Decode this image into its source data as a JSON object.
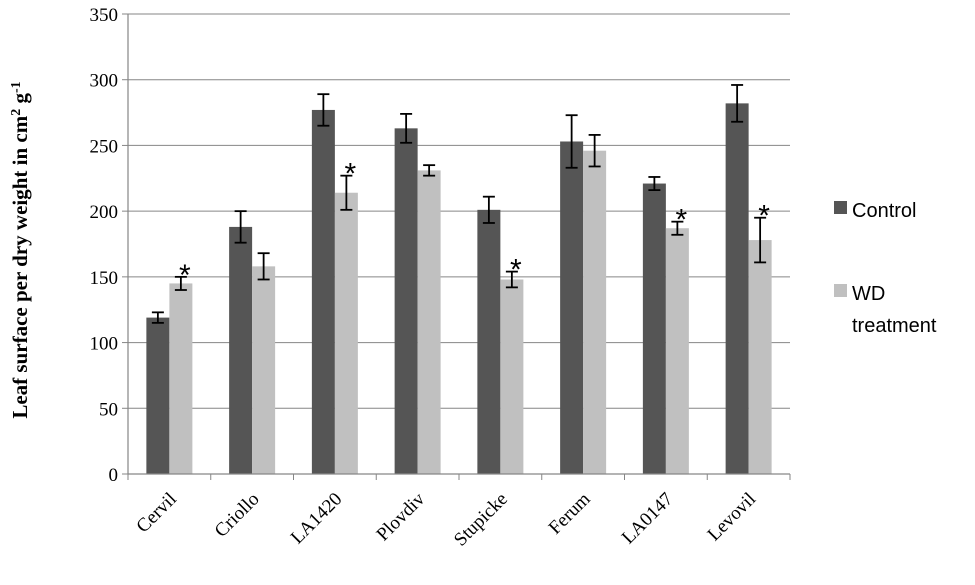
{
  "chart_data": {
    "type": "bar",
    "title": "",
    "xlabel": "",
    "ylabel_main": "Leaf surface per dry weight in cm",
    "ylabel_sup1": "2",
    "ylabel_mid": " g",
    "ylabel_sup2": "-1",
    "ylim": [
      0,
      350
    ],
    "yticks": [
      0,
      50,
      100,
      150,
      200,
      250,
      300,
      350
    ],
    "grid": true,
    "legend_position": "right",
    "categories": [
      "Cervil",
      "Criollo",
      "LA1420",
      "Plovdiv",
      "Stupicke",
      "Ferum",
      "LA0147",
      "Levovil"
    ],
    "series": [
      {
        "name": "Control",
        "color": "#555555",
        "values": [
          119,
          188,
          277,
          263,
          201,
          253,
          221,
          282
        ],
        "errors": [
          4,
          12,
          12,
          11,
          10,
          20,
          5,
          14
        ]
      },
      {
        "name_line1": "WD",
        "name_line2": "treatment",
        "color": "#c0c0c0",
        "values": [
          145,
          158,
          214,
          231,
          148,
          246,
          187,
          178
        ],
        "errors": [
          5,
          10,
          13,
          4,
          6,
          12,
          5,
          17
        ]
      }
    ],
    "significance_marker": "*",
    "significant_categories": [
      "Cervil",
      "LA1420",
      "Stupicke",
      "LA0147",
      "Levovil"
    ]
  }
}
